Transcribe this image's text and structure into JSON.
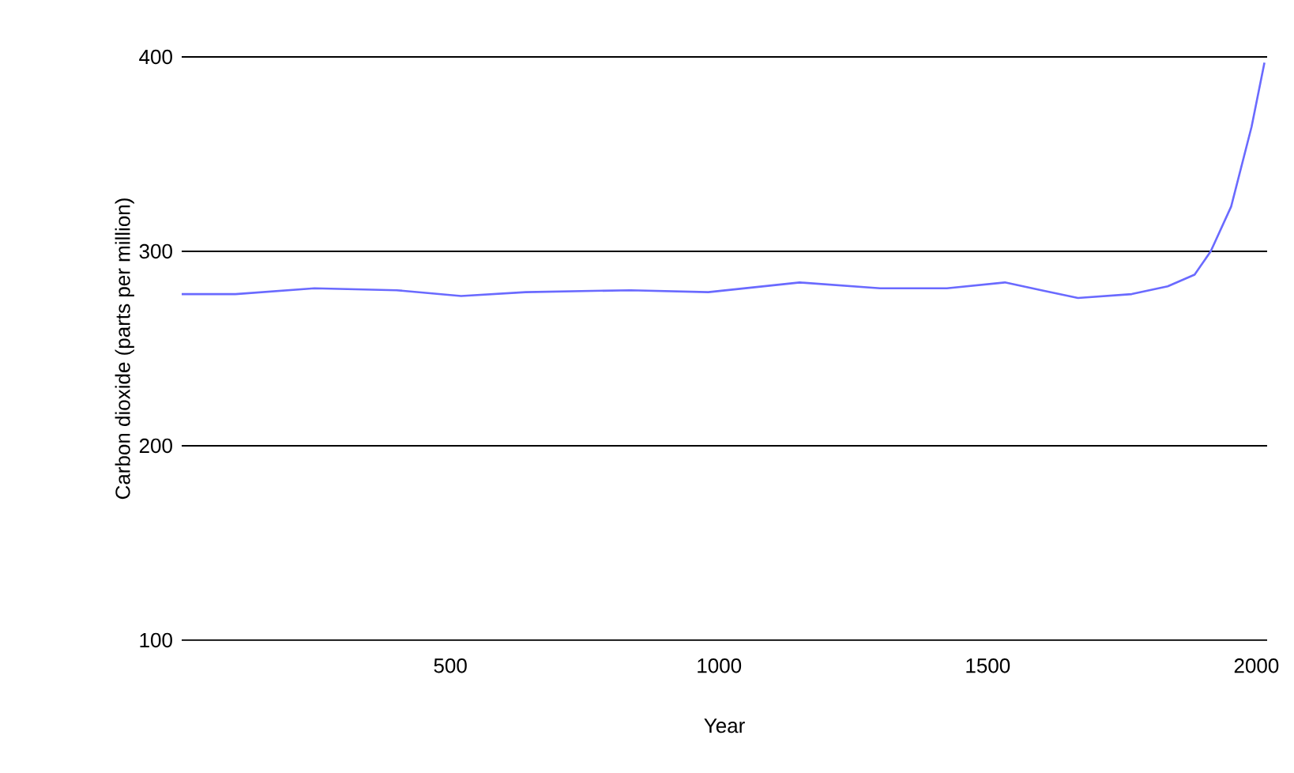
{
  "chart_data": {
    "type": "line",
    "xlabel": "Year",
    "ylabel": "Carbon dioxide (parts per million)",
    "xlim": [
      0,
      2020
    ],
    "ylim": [
      100,
      400
    ],
    "xticks": [
      500,
      1000,
      1500,
      2000
    ],
    "yticks": [
      100,
      200,
      300,
      400
    ],
    "grid": "y",
    "marker": "none",
    "line_style": "solid",
    "series": [
      {
        "color": "#6a6aff",
        "x": [
          0,
          100,
          247,
          400,
          520,
          640,
          835,
          980,
          1150,
          1300,
          1424,
          1532,
          1600,
          1668,
          1768,
          1835,
          1885,
          1915,
          1953,
          1991,
          2015
        ],
        "values": [
          278,
          278,
          281,
          280,
          277,
          279,
          280,
          279,
          284,
          281,
          281,
          284,
          280,
          276,
          278,
          282,
          288,
          300,
          323,
          364,
          397
        ]
      }
    ]
  }
}
